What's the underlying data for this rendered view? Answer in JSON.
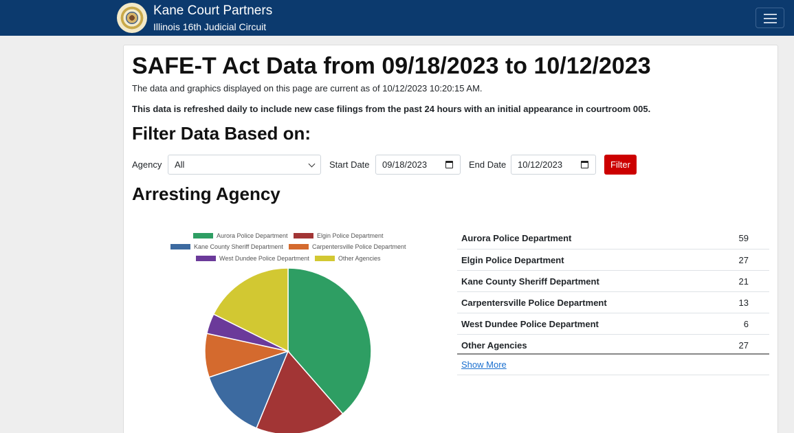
{
  "navbar": {
    "title": "Kane Court Partners",
    "subtitle": "Illinois 16th Judicial Circuit",
    "logo_icon": "state-seal-icon",
    "menu_icon": "hamburger-menu-icon",
    "background": "#0c3a6e"
  },
  "page": {
    "title": "SAFE-T Act Data from 09/18/2023 to 10/12/2023",
    "updated_text": "The data and graphics displayed on this page are current as of 10/12/2023 10:20:15 AM.",
    "refresh_text": "This data is refreshed daily to include new case filings from the past 24 hours with an initial appearance in courtroom 005."
  },
  "filter": {
    "heading": "Filter Data Based on:",
    "agency_label": "Agency",
    "agency_value": "All",
    "start_label": "Start Date",
    "start_value": "09/18/2023",
    "end_label": "End Date",
    "end_value": "10/12/2023",
    "button_label": "Filter",
    "button_color": "#cc0000"
  },
  "agency_section": {
    "heading": "Arresting Agency"
  },
  "chart_data": {
    "type": "pie",
    "categories": [
      "Aurora Police Department",
      "Elgin Police Department",
      "Kane County Sheriff Department",
      "Carpentersville Police Department",
      "West Dundee Police Department",
      "Other Agencies"
    ],
    "values": [
      59,
      27,
      21,
      13,
      6,
      27
    ],
    "colors": [
      "#2e9e63",
      "#a23535",
      "#3c6aa0",
      "#d46a2e",
      "#6b3a9a",
      "#d2c832"
    ],
    "legend_position": "top"
  },
  "table": {
    "rows": [
      {
        "name": "Aurora Police Department",
        "count": "59"
      },
      {
        "name": "Elgin Police Department",
        "count": "27"
      },
      {
        "name": "Kane County Sheriff Department",
        "count": "21"
      },
      {
        "name": "Carpentersville Police Department",
        "count": "13"
      },
      {
        "name": "West Dundee Police Department",
        "count": "6"
      },
      {
        "name": "Other Agencies",
        "count": "27"
      }
    ],
    "show_more": "Show More"
  }
}
